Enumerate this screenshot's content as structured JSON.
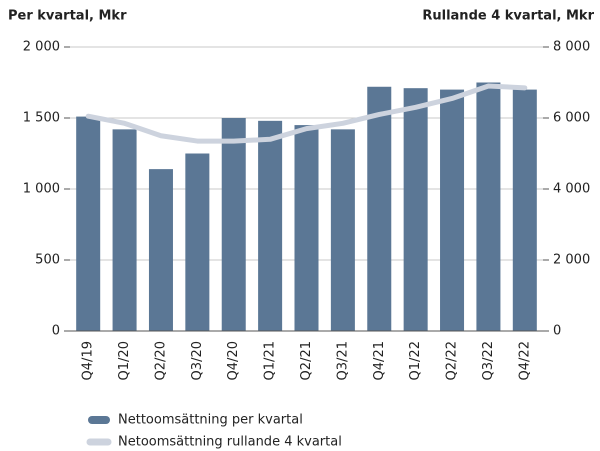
{
  "chart_data": {
    "type": "bar",
    "title": "Per kvartal, Mkr",
    "y2_title": "Rullande 4 kvartal, Mkr",
    "categories": [
      "Q4/19",
      "Q1/20",
      "Q2/20",
      "Q3/20",
      "Q4/20",
      "Q1/21",
      "Q2/21",
      "Q3/21",
      "Q4/21",
      "Q1/22",
      "Q2/22",
      "Q3/22",
      "Q4/22"
    ],
    "series": [
      {
        "name": "Nettoomsättning per kvartal",
        "type": "bar",
        "color": "#5b7795",
        "axis": "y",
        "values": [
          1510,
          1420,
          1140,
          1250,
          1500,
          1480,
          1450,
          1420,
          1720,
          1710,
          1700,
          1750,
          1700
        ]
      },
      {
        "name": "Netoomsättning rullande 4 kvartal",
        "type": "line",
        "color": "#cdd3de",
        "axis": "y2",
        "values": [
          6050,
          5850,
          5500,
          5350,
          5350,
          5400,
          5700,
          5850,
          6100,
          6300,
          6550,
          6900,
          6850
        ]
      }
    ],
    "ylim": [
      0,
      2000
    ],
    "yticks": [
      0,
      500,
      {
        "value": 1000,
        "label": "1 000"
      },
      {
        "value": 1500,
        "label": "1 500"
      },
      {
        "value": 2000,
        "label": "2 000"
      }
    ],
    "y2lim": [
      0,
      8000
    ],
    "y2ticks": [
      0,
      {
        "value": 2000,
        "label": "2 000"
      },
      {
        "value": 4000,
        "label": "4 000"
      },
      {
        "value": 6000,
        "label": "6 000"
      },
      {
        "value": 8000,
        "label": "8 000"
      }
    ],
    "grid": true
  }
}
